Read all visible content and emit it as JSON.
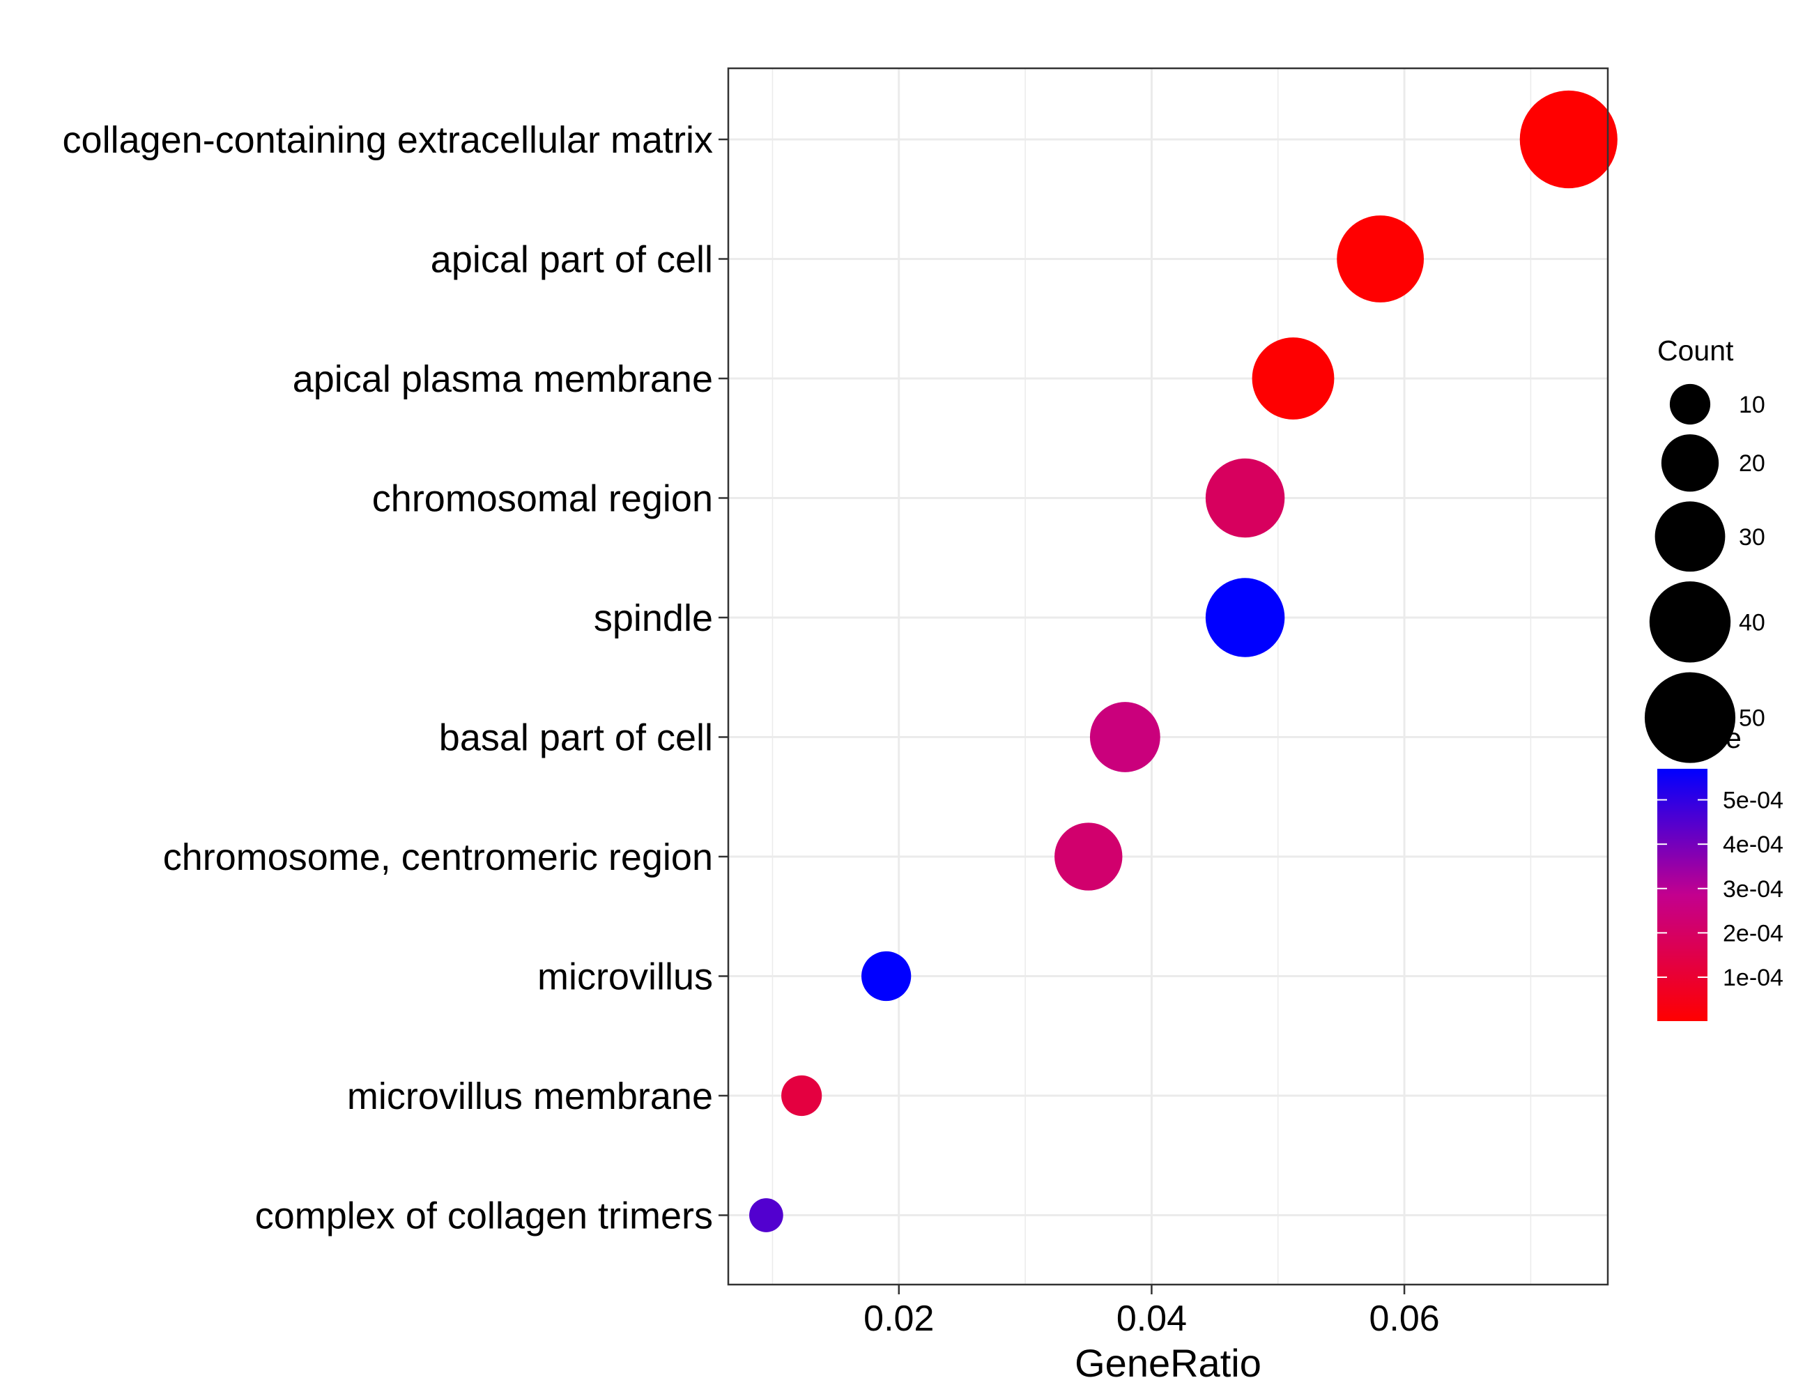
{
  "chart_data": {
    "type": "scatter",
    "title": "",
    "xlabel": "GeneRatio",
    "ylabel": "",
    "xlim": [
      0.0065,
      0.0761
    ],
    "grid": true,
    "x_ticks": [
      {
        "value": 0.02,
        "label": "0.02"
      },
      {
        "value": 0.04,
        "label": "0.04"
      },
      {
        "value": 0.06,
        "label": "0.06"
      }
    ],
    "categories": [
      "collagen-containing extracellular matrix",
      "apical part of cell",
      "apical plasma membrane",
      "chromosomal region",
      "spindle",
      "basal part of cell",
      "chromosome, centromeric region",
      "microvillus",
      "microvillus membrane",
      "complex of collagen trimers"
    ],
    "points": [
      {
        "category": "collagen-containing extracellular matrix",
        "gene_ratio": 0.073,
        "count": 58,
        "qvalue": 1e-06
      },
      {
        "category": "apical part of cell",
        "gene_ratio": 0.0581,
        "count": 46,
        "qvalue": 3e-06
      },
      {
        "category": "apical plasma membrane",
        "gene_ratio": 0.0512,
        "count": 41,
        "qvalue": 4e-06
      },
      {
        "category": "chromosomal region",
        "gene_ratio": 0.0474,
        "count": 38,
        "qvalue": 0.00019
      },
      {
        "category": "spindle",
        "gene_ratio": 0.0474,
        "count": 38,
        "qvalue": 0.00057
      },
      {
        "category": "basal part of cell",
        "gene_ratio": 0.0379,
        "count": 30,
        "qvalue": 0.00025
      },
      {
        "category": "chromosome, centromeric region",
        "gene_ratio": 0.035,
        "count": 28,
        "qvalue": 0.00022
      },
      {
        "category": "microvillus",
        "gene_ratio": 0.019,
        "count": 15,
        "qvalue": 0.00057
      },
      {
        "category": "microvillus membrane",
        "gene_ratio": 0.0123,
        "count": 10,
        "qvalue": 0.00013
      },
      {
        "category": "complex of collagen trimers",
        "gene_ratio": 0.0095,
        "count": 7,
        "qvalue": 0.00045
      }
    ],
    "size_legend": {
      "title": "Count",
      "values": [
        10,
        20,
        30,
        40,
        50
      ],
      "labels": [
        "10",
        "20",
        "30",
        "40",
        "50"
      ]
    },
    "color_legend": {
      "title": "qvalue",
      "low_color": "#FF0000",
      "high_color": "#0000FF",
      "range": [
        1e-06,
        0.00057
      ],
      "ticks": [
        {
          "value": 0.0001,
          "label": "1e-04"
        },
        {
          "value": 0.0002,
          "label": "2e-04"
        },
        {
          "value": 0.0003,
          "label": "3e-04"
        },
        {
          "value": 0.0004,
          "label": "4e-04"
        },
        {
          "value": 0.0005,
          "label": "5e-04"
        }
      ]
    }
  }
}
